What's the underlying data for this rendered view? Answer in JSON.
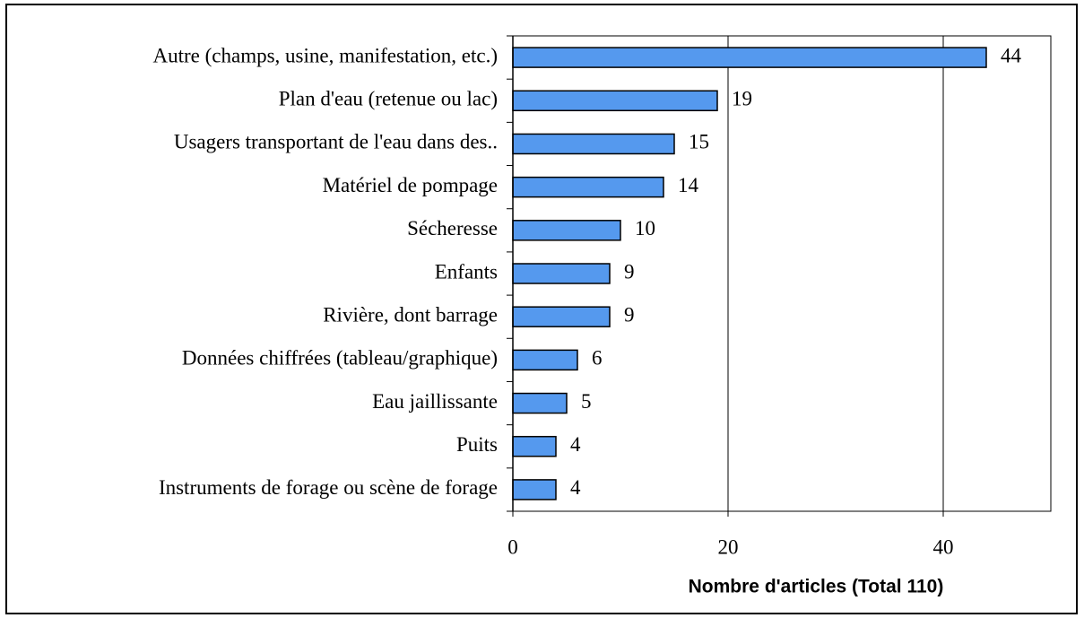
{
  "chart_data": {
    "type": "bar",
    "orientation": "horizontal",
    "categories": [
      "Autre (champs, usine, manifestation, etc.)",
      "Plan d'eau (retenue ou lac)",
      "Usagers transportant de l'eau dans des..",
      "Matériel de pompage",
      "Sécheresse",
      "Enfants",
      "Rivière, dont barrage",
      "Données chiffrées (tableau/graphique)",
      "Eau jaillissante",
      "Puits",
      "Instruments de forage ou scène de forage"
    ],
    "values": [
      44,
      19,
      15,
      14,
      10,
      9,
      9,
      6,
      5,
      4,
      4
    ],
    "color": "#5599ee",
    "xlabel": "Nombre d'articles (Total 110)",
    "xlim": [
      0,
      50
    ],
    "xticks": [
      0,
      20,
      40
    ],
    "grid": true
  }
}
